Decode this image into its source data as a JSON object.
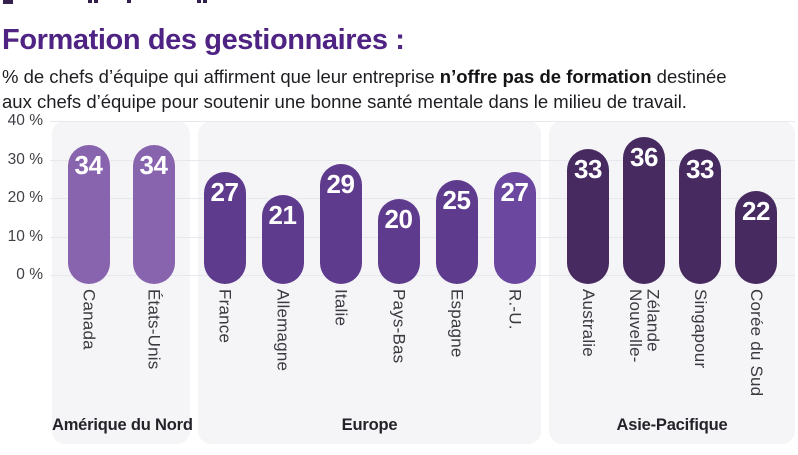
{
  "header": {
    "title": "Formation des gestionnaires :",
    "subtitle_line1_pre": "% de chefs d’équipe qui affirment que leur entreprise ",
    "subtitle_line1_bold": "n’offre pas de formation",
    "subtitle_line1_post": " destinée",
    "subtitle_line2": "aux chefs d’équipe pour soutenir une bonne santé mentale dans le milieu de travail."
  },
  "chart_data": {
    "type": "bar",
    "title": "Formation des gestionnaires :",
    "ylabel": "% de chefs d’équipe",
    "ylim": [
      0,
      40
    ],
    "ytick_step": 10,
    "yticks": [
      "40 %",
      "30 %",
      "20 %",
      "10 %",
      "0 %"
    ],
    "grid": true,
    "bar_value_text_color": "#ffffff",
    "groups": [
      {
        "region": "Amérique du Nord",
        "color": "#8863ae",
        "bars": [
          {
            "label": "Canada",
            "value": 34
          },
          {
            "label": "États-Unis",
            "value": 34
          }
        ]
      },
      {
        "region": "Europe",
        "color": "#5f3b8e",
        "bars": [
          {
            "label": "France",
            "value": 27
          },
          {
            "label": "Allemagne",
            "value": 21
          },
          {
            "label": "Italie",
            "value": 29
          },
          {
            "label": "Pays-Bas",
            "value": 20
          },
          {
            "label": "Espagne",
            "value": 25
          },
          {
            "label": "R.-U.",
            "value": 27,
            "color": "#6b47a0"
          }
        ]
      },
      {
        "region": "Asie-Pacifique",
        "color": "#462a60",
        "bars": [
          {
            "label": "Australie",
            "value": 33
          },
          {
            "label": "Nouvelle-Zélande",
            "value": 36,
            "label_lines": "Nouvelle-\nZélande"
          },
          {
            "label": "Singapour",
            "value": 33
          },
          {
            "label": "Corée du Sud",
            "value": 22
          }
        ]
      }
    ]
  }
}
